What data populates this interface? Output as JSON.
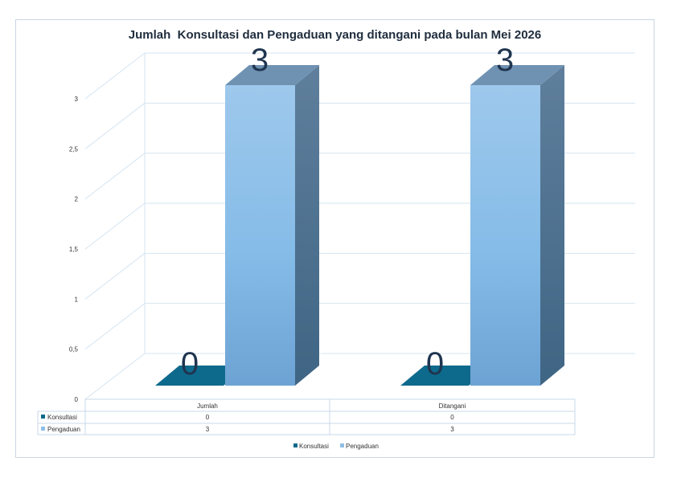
{
  "chart_data": {
    "type": "bar",
    "title": "Jumlah  Konsultasi dan Pengaduan yang ditangani pada bulan Mei 2026",
    "categories": [
      "Jumlah",
      "Ditangani"
    ],
    "series": [
      {
        "name": "Konsultasi",
        "values": [
          0,
          0
        ],
        "color": "#0e6a8c"
      },
      {
        "name": "Pengaduan",
        "values": [
          3,
          3
        ],
        "color": "#8fbfe6"
      }
    ],
    "data_labels": [
      "0",
      "3",
      "0",
      "3"
    ],
    "y_ticks": [
      "0",
      "0,5",
      "1",
      "1,5",
      "2",
      "2,5",
      "3"
    ],
    "ylim": [
      0,
      3
    ],
    "grid": true,
    "style": "3d-column with data table",
    "legend": "bottom",
    "data_table": {
      "header": [
        "Jumlah",
        "Ditangani"
      ],
      "rows": [
        {
          "label": "Konsultasi",
          "cells": [
            "0",
            "0"
          ]
        },
        {
          "label": "Pengaduan",
          "cells": [
            "3",
            "3"
          ]
        }
      ]
    }
  }
}
